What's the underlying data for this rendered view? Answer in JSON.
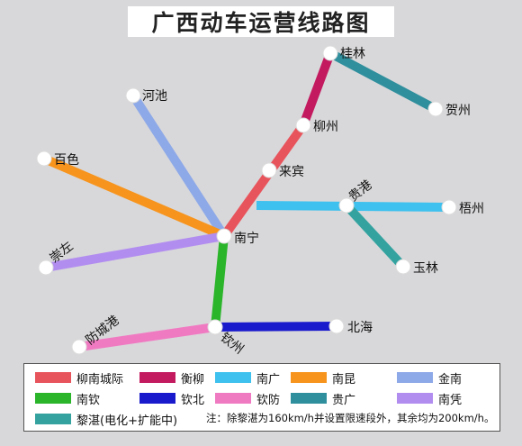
{
  "title": "广西动车运营线路图",
  "stations": {
    "guilin": "桂林",
    "hezhou": "贺州",
    "liuzhou": "柳州",
    "laibin": "来宾",
    "hechi": "河池",
    "baise": "百色",
    "nanning": "南宁",
    "chongzuo": "崇左",
    "guigang": "贵港",
    "wuzhou": "梧州",
    "yulin": "玉林",
    "fangchenggang": "防城港",
    "qinzhou": "钦州",
    "beihai": "北海"
  },
  "lines": [
    {
      "key": "liunan",
      "name": "柳南城际",
      "color": "#e8545c"
    },
    {
      "key": "hengliu",
      "name": "衡柳",
      "color": "#c31a5f"
    },
    {
      "key": "nanguang",
      "name": "南广",
      "color": "#3ec1ee"
    },
    {
      "key": "nankun",
      "name": "南昆",
      "color": "#f7941d"
    },
    {
      "key": "jinnan",
      "name": "金南",
      "color": "#8ea9e8"
    },
    {
      "key": "nanqin",
      "name": "南钦",
      "color": "#2bb52b"
    },
    {
      "key": "qinbei",
      "name": "钦北",
      "color": "#1a1acd"
    },
    {
      "key": "qinfang",
      "name": "钦防",
      "color": "#f07ac2"
    },
    {
      "key": "guiguang",
      "name": "贵广",
      "color": "#2f8f9d"
    },
    {
      "key": "nanping",
      "name": "南凭",
      "color": "#b28df0"
    },
    {
      "key": "lizhan",
      "name": "黎湛(电化+扩能中)",
      "color": "#34a3a0"
    }
  ],
  "legend_note": "注：除黎湛为160km/h并设置限速段外，其余均为200km/h。"
}
